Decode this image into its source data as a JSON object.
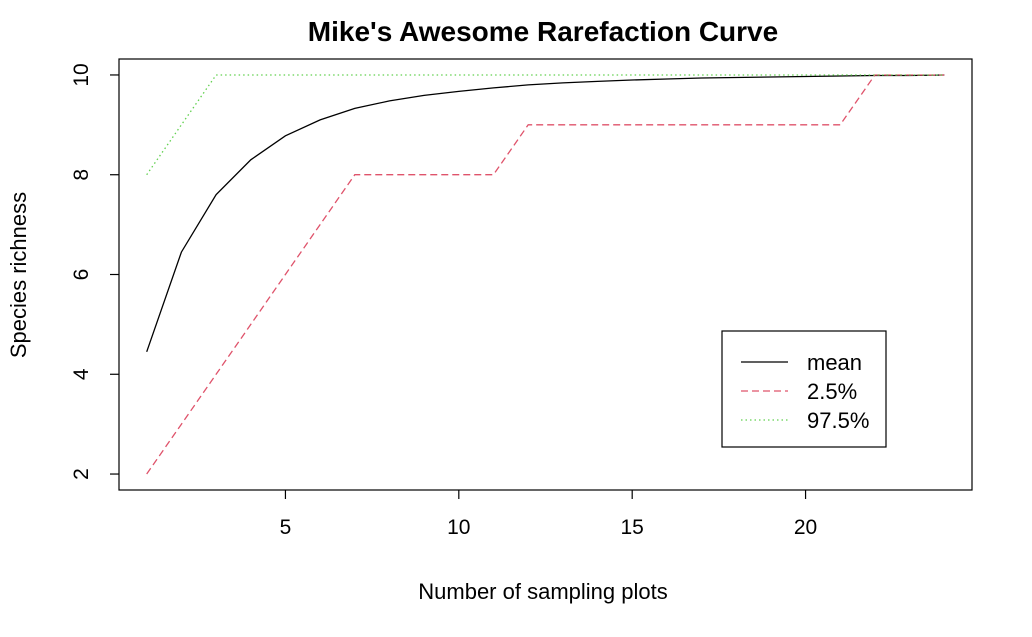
{
  "chart_data": {
    "type": "line",
    "title": "Mike's Awesome Rarefaction Curve",
    "xlabel": "Number of sampling plots",
    "ylabel": "Species richness",
    "xlim": [
      0.2,
      24.8
    ],
    "ylim": [
      1.68,
      10.32
    ],
    "xticks": [
      5,
      10,
      15,
      20
    ],
    "yticks": [
      2,
      4,
      6,
      8,
      10
    ],
    "grid": false,
    "legend_position": "bottom-right",
    "x": [
      1,
      2,
      3,
      4,
      5,
      6,
      7,
      8,
      9,
      10,
      11,
      12,
      13,
      14,
      15,
      16,
      17,
      18,
      19,
      20,
      21,
      22,
      23,
      24
    ],
    "series": [
      {
        "name": "mean",
        "color": "#000000",
        "dash": "solid",
        "values": [
          4.45,
          6.45,
          7.6,
          8.3,
          8.78,
          9.1,
          9.33,
          9.48,
          9.59,
          9.67,
          9.74,
          9.8,
          9.84,
          9.87,
          9.9,
          9.92,
          9.94,
          9.95,
          9.96,
          9.97,
          9.98,
          9.99,
          9.99,
          10.0
        ]
      },
      {
        "name": "2.5%",
        "color": "#DF536B",
        "dash": "dashed",
        "values": [
          2,
          3,
          4,
          5,
          6,
          7,
          8,
          8,
          8,
          8,
          8,
          9,
          9,
          9,
          9,
          9,
          9,
          9,
          9,
          9,
          9,
          10,
          10,
          10
        ]
      },
      {
        "name": "97.5%",
        "color": "#61D04F",
        "dash": "dotted",
        "values": [
          8,
          9,
          10,
          10,
          10,
          10,
          10,
          10,
          10,
          10,
          10,
          10,
          10,
          10,
          10,
          10,
          10,
          10,
          10,
          10,
          10,
          10,
          10,
          10
        ]
      }
    ]
  }
}
